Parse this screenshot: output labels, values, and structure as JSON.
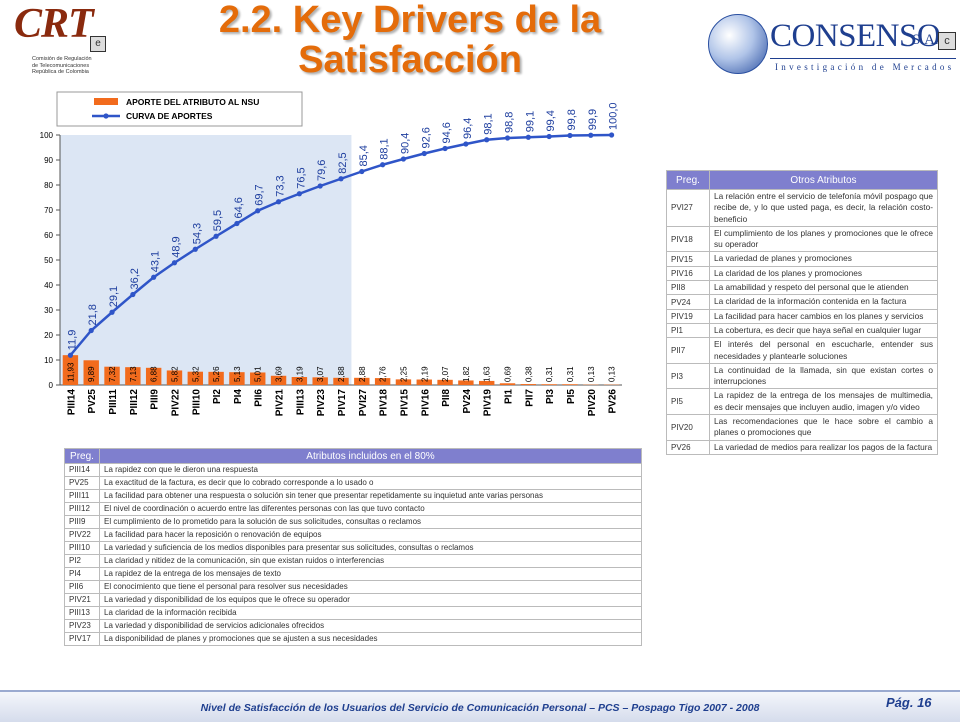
{
  "header": {
    "title_line1": "2.2. Key Drivers de la",
    "title_line2": "Satisfacción",
    "crt_logo": {
      "mark": "CRT",
      "caption": [
        "Comisión de Regulación",
        "de Telecomunicaciones",
        "República de Colombia"
      ]
    },
    "consenso_logo": {
      "name": "CONSENSO",
      "suffix": "S.A.",
      "tagline": "Investigación de Mercados"
    }
  },
  "chart_data": {
    "type": "bar",
    "categories": [
      "PIII14",
      "PV25",
      "PIII11",
      "PIII12",
      "PIII9",
      "PIV22",
      "PIII10",
      "PI2",
      "PI4",
      "PII6",
      "PIV21",
      "PIII13",
      "PIV23",
      "PIV17",
      "PVI27",
      "PIV18",
      "PIV15",
      "PIV16",
      "PII8",
      "PV24",
      "PIV19",
      "PI1",
      "PII7",
      "PI3",
      "PI5",
      "PIV20",
      "PV26"
    ],
    "series": [
      {
        "name": "APORTE DEL ATRIBUTO AL NSU",
        "type": "bar",
        "color": "#f26b1d",
        "values": [
          11.93,
          9.89,
          7.32,
          7.13,
          6.88,
          5.82,
          5.32,
          5.26,
          5.13,
          5.01,
          3.69,
          3.19,
          3.07,
          2.88,
          2.88,
          2.76,
          2.25,
          2.19,
          2.07,
          1.82,
          1.63,
          0.69,
          0.38,
          0.31,
          0.31,
          0.13,
          0.13
        ],
        "labels": [
          "11,93",
          "9,89",
          "7,32",
          "7,13",
          "6,88",
          "5,82",
          "5,32",
          "5,26",
          "5,13",
          "5,01",
          "3,69",
          "3,19",
          "3,07",
          "2,88",
          "2,88",
          "2,76",
          "2,25",
          "2,19",
          "2,07",
          "1,82",
          "1,63",
          "0,69",
          "0,38",
          "0,31",
          "0,31",
          "0,13",
          "0,13"
        ]
      },
      {
        "name": "CURVA DE APORTES",
        "type": "line",
        "color": "#2f55c8",
        "values": [
          11.9,
          21.8,
          29.1,
          36.2,
          43.1,
          48.9,
          54.3,
          59.5,
          64.6,
          69.7,
          73.3,
          76.5,
          79.6,
          82.5,
          85.4,
          88.1,
          90.4,
          92.6,
          94.6,
          96.4,
          98.1,
          98.8,
          99.1,
          99.4,
          99.8,
          99.9,
          100.0
        ],
        "labels": [
          "11,9",
          "21,8",
          "29,1",
          "36,2",
          "43,1",
          "48,9",
          "54,3",
          "59,5",
          "64,6",
          "69,7",
          "73,3",
          "76,5",
          "79,6",
          "82,5",
          "85,4",
          "88,1",
          "90,4",
          "92,6",
          "94,6",
          "96,4",
          "98,1",
          "98,8",
          "99,1",
          "99,4",
          "99,8",
          "99,9",
          "100,0"
        ]
      }
    ],
    "ylim": [
      0,
      100
    ],
    "yticks": [
      0,
      10,
      20,
      30,
      40,
      50,
      60,
      70,
      80,
      90,
      100
    ],
    "highlight_through_index": 13,
    "highlight_color": "#dce6f4",
    "legend_position": "top-left"
  },
  "table80": {
    "header_code": "Preg.",
    "header_desc": "Atributos incluidos en el 80%",
    "rows": [
      {
        "code": "PIII14",
        "desc": "La rapidez con que le dieron una respuesta"
      },
      {
        "code": "PV25",
        "desc": "La exactitud de la factura, es decir que lo cobrado corresponde a lo usado o"
      },
      {
        "code": "PIII11",
        "desc": "La facilidad para obtener una respuesta o solución sin tener que presentar repetidamente su inquietud ante varias personas"
      },
      {
        "code": "PIII12",
        "desc": "El nivel de coordinación o acuerdo entre las diferentes personas con las que tuvo contacto"
      },
      {
        "code": "PIII9",
        "desc": "El cumplimiento de lo prometido para la solución de sus solicitudes, consultas o reclamos"
      },
      {
        "code": "PIV22",
        "desc": "La facilidad para hacer la reposición o renovación de equipos"
      },
      {
        "code": "PIII10",
        "desc": "La variedad y suficiencia de los medios disponibles para presentar sus solicitudes, consultas o reclamos"
      },
      {
        "code": "PI2",
        "desc": "La claridad y nitidez de la comunicación, sin que existan ruidos o interferencias"
      },
      {
        "code": "PI4",
        "desc": "La rapidez de la entrega de los mensajes de texto"
      },
      {
        "code": "PII6",
        "desc": "El conocimiento que tiene el personal para resolver sus necesidades"
      },
      {
        "code": "PIV21",
        "desc": "La variedad y disponibilidad de los equipos que le ofrece su operador"
      },
      {
        "code": "PIII13",
        "desc": "La claridad de la información recibida"
      },
      {
        "code": "PIV23",
        "desc": "La variedad y disponibilidad de servicios adicionales ofrecidos"
      },
      {
        "code": "PIV17",
        "desc": "La disponibilidad de planes y promociones que se ajusten a sus necesidades"
      }
    ]
  },
  "tableOther": {
    "header_code": "Preg.",
    "header_desc": "Otros Atributos",
    "rows": [
      {
        "code": "PVI27",
        "desc": "La relación entre el servicio de telefonía móvil pospago que recibe de, y lo que usted paga, es decir, la relación costo-beneficio"
      },
      {
        "code": "PIV18",
        "desc": "El cumplimiento de los planes y promociones que le ofrece su operador"
      },
      {
        "code": "PIV15",
        "desc": "La variedad de planes y promociones"
      },
      {
        "code": "PIV16",
        "desc": "La claridad de los planes y promociones"
      },
      {
        "code": "PII8",
        "desc": "La amabilidad y respeto del personal que le atienden"
      },
      {
        "code": "PV24",
        "desc": "La claridad de la información contenida en la factura"
      },
      {
        "code": "PIV19",
        "desc": "La facilidad para hacer cambios en los planes y servicios"
      },
      {
        "code": "PI1",
        "desc": "La cobertura, es decir que haya señal en cualquier lugar"
      },
      {
        "code": "PII7",
        "desc": "El interés del personal en escucharle, entender sus necesidades y plantearle soluciones"
      },
      {
        "code": "PI3",
        "desc": "La continuidad de la llamada, sin que existan cortes o interrupciones"
      },
      {
        "code": "PI5",
        "desc": "La rapidez de la entrega de los mensajes de multimedia, es decir mensajes que incluyen audio, imagen y/o video"
      },
      {
        "code": "PIV20",
        "desc": "Las recomendaciones que le hace sobre el cambio a planes o promociones que"
      },
      {
        "code": "PV26",
        "desc": "La variedad de medios para realizar los pagos de la factura"
      }
    ]
  },
  "footer": {
    "text": "Nivel de Satisfacción de los Usuarios del Servicio de Comunicación Personal – PCS – Pospago Tigo 2007 - 2008",
    "page": "Pág. 16"
  }
}
